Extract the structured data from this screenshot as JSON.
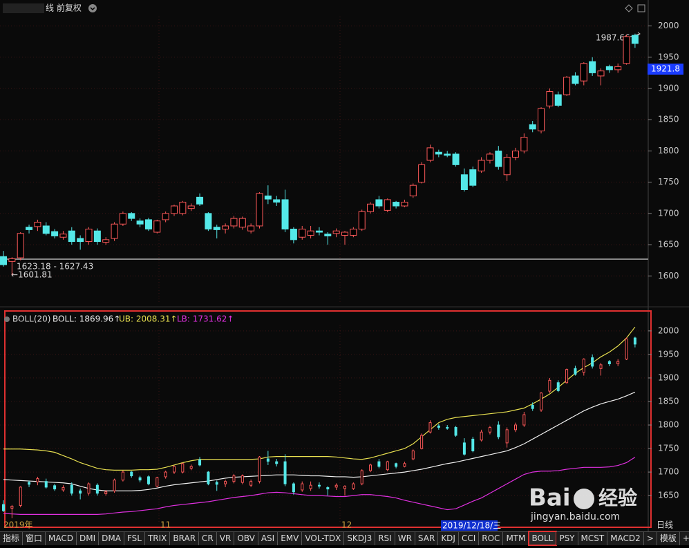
{
  "window": {
    "title": "线 前复权"
  },
  "chart_data": [
    {
      "type": "candlestick",
      "open": [
        1631,
        1623.18,
        1629,
        1678,
        1679,
        1680,
        1671,
        1662,
        1672,
        1660,
        1655,
        1672,
        1654,
        1660,
        1683,
        1700,
        1688,
        1690,
        1670,
        1690,
        1700,
        1700,
        1708,
        1726,
        1700,
        1678,
        1675,
        1680,
        1678,
        1672,
        1680,
        1728,
        1722,
        1722,
        1675,
        1662,
        1665,
        1672,
        1667,
        1668,
        1665,
        1665,
        1675,
        1703,
        1722,
        1705,
        1718,
        1712,
        1728,
        1750,
        1785,
        1798,
        1795,
        1795,
        1762,
        1770,
        1768,
        1785,
        1800,
        1762,
        1790,
        1800,
        1842,
        1832,
        1872,
        1890,
        1890,
        1920,
        1912,
        1943,
        1920,
        1935,
        1930,
        1940,
        1985
      ],
      "high": [
        1640,
        1630,
        1670,
        1682,
        1690,
        1686,
        1675,
        1672,
        1678,
        1665,
        1678,
        1676,
        1662,
        1686,
        1703,
        1702,
        1692,
        1693,
        1690,
        1703,
        1714,
        1720,
        1716,
        1732,
        1702,
        1682,
        1684,
        1696,
        1695,
        1684,
        1734,
        1745,
        1728,
        1738,
        1678,
        1680,
        1680,
        1678,
        1670,
        1676,
        1672,
        1678,
        1706,
        1718,
        1728,
        1724,
        1720,
        1722,
        1748,
        1782,
        1810,
        1802,
        1800,
        1798,
        1772,
        1775,
        1790,
        1798,
        1808,
        1795,
        1805,
        1828,
        1848,
        1870,
        1900,
        1895,
        1920,
        1926,
        1942,
        1950,
        1932,
        1938,
        1940,
        1986,
        1987.66
      ],
      "low": [
        1615,
        1601.81,
        1625,
        1668,
        1672,
        1665,
        1660,
        1658,
        1650,
        1642,
        1650,
        1650,
        1650,
        1656,
        1680,
        1688,
        1678,
        1672,
        1668,
        1686,
        1696,
        1697,
        1704,
        1712,
        1672,
        1660,
        1668,
        1676,
        1674,
        1668,
        1676,
        1715,
        1712,
        1670,
        1652,
        1658,
        1660,
        1665,
        1650,
        1662,
        1650,
        1662,
        1672,
        1700,
        1708,
        1702,
        1708,
        1710,
        1725,
        1748,
        1782,
        1790,
        1790,
        1775,
        1735,
        1742,
        1765,
        1780,
        1770,
        1752,
        1785,
        1796,
        1830,
        1828,
        1868,
        1870,
        1888,
        1905,
        1905,
        1920,
        1905,
        1925,
        1925,
        1938,
        1965
      ],
      "close": [
        1618,
        1627.43,
        1668,
        1674,
        1686,
        1668,
        1664,
        1667,
        1655,
        1655,
        1675,
        1655,
        1658,
        1683,
        1700,
        1692,
        1683,
        1675,
        1688,
        1700,
        1712,
        1718,
        1712,
        1715,
        1675,
        1674,
        1680,
        1692,
        1692,
        1680,
        1732,
        1723,
        1718,
        1675,
        1658,
        1675,
        1672,
        1670,
        1664,
        1672,
        1670,
        1675,
        1703,
        1715,
        1712,
        1722,
        1712,
        1718,
        1745,
        1778,
        1805,
        1795,
        1793,
        1778,
        1738,
        1745,
        1785,
        1795,
        1775,
        1790,
        1800,
        1822,
        1835,
        1868,
        1895,
        1873,
        1918,
        1908,
        1940,
        1925,
        1928,
        1930,
        1935,
        1983,
        1972
      ],
      "up_color": "#ff5a5a",
      "down_color": "#54e8e8",
      "ylim": [
        1555,
        2015
      ],
      "yticks": [
        1600,
        1650,
        1700,
        1750,
        1800,
        1850,
        1900,
        1950,
        2000
      ],
      "annotations": {
        "high_label": "1987.66",
        "price_label": "1921.8",
        "range_label": "1623.18 - 1627.43",
        "low_label": "←1601.81"
      },
      "grid": true
    },
    {
      "type": "boll",
      "title": "BOLL(20)",
      "series": [
        {
          "name": "BOLL: 1869.96↑",
          "color": "#f0f0f0",
          "values": [
            1684,
            1683,
            1682,
            1681,
            1680,
            1679,
            1678,
            1677,
            1675,
            1670,
            1665,
            1662,
            1660,
            1660,
            1660,
            1660,
            1661,
            1663,
            1666,
            1670,
            1673,
            1675,
            1677,
            1679,
            1681,
            1684,
            1687,
            1689,
            1690,
            1691,
            1692,
            1693,
            1694,
            1694,
            1694,
            1693,
            1692,
            1692,
            1691,
            1690,
            1690,
            1689,
            1690,
            1692,
            1694,
            1696,
            1698,
            1700,
            1703,
            1706,
            1710,
            1714,
            1718,
            1721,
            1725,
            1729,
            1733,
            1737,
            1741,
            1745,
            1752,
            1760,
            1770,
            1780,
            1790,
            1800,
            1810,
            1820,
            1830,
            1838,
            1845,
            1850,
            1855,
            1862,
            1869.96
          ]
        },
        {
          "name": "UB: 2008.31↑",
          "color": "#e8e050",
          "values": [
            1749,
            1749,
            1749,
            1748,
            1747,
            1745,
            1742,
            1735,
            1728,
            1720,
            1714,
            1708,
            1705,
            1704,
            1704,
            1704,
            1705,
            1705,
            1706,
            1710,
            1715,
            1720,
            1724,
            1727,
            1727,
            1727,
            1727,
            1727,
            1727,
            1727,
            1728,
            1732,
            1733,
            1733,
            1733,
            1733,
            1733,
            1733,
            1733,
            1732,
            1730,
            1728,
            1727,
            1730,
            1735,
            1740,
            1745,
            1750,
            1760,
            1775,
            1790,
            1805,
            1812,
            1816,
            1818,
            1820,
            1822,
            1824,
            1826,
            1828,
            1832,
            1836,
            1845,
            1855,
            1866,
            1880,
            1895,
            1910,
            1922,
            1932,
            1945,
            1955,
            1968,
            1985,
            2008.31
          ]
        },
        {
          "name": "LB: 1731.62↑",
          "color": "#e030e0",
          "values": [
            1612,
            1611,
            1610,
            1610,
            1610,
            1610,
            1610,
            1610,
            1610,
            1610,
            1610,
            1610,
            1611,
            1613,
            1615,
            1616,
            1618,
            1620,
            1622,
            1626,
            1629,
            1631,
            1633,
            1635,
            1637,
            1640,
            1643,
            1646,
            1648,
            1650,
            1653,
            1656,
            1657,
            1656,
            1654,
            1652,
            1650,
            1650,
            1649,
            1648,
            1648,
            1650,
            1652,
            1652,
            1650,
            1648,
            1645,
            1640,
            1636,
            1632,
            1628,
            1624,
            1620,
            1622,
            1630,
            1638,
            1645,
            1655,
            1665,
            1675,
            1685,
            1695,
            1700,
            1702,
            1702,
            1703,
            1706,
            1708,
            1710,
            1710,
            1710,
            1711,
            1714,
            1720,
            1731.62
          ]
        }
      ],
      "ylim": [
        1590,
        2013
      ],
      "yticks": [
        1650,
        1700,
        1750,
        1800,
        1850,
        1900,
        1950,
        2000
      ],
      "x_labels": [
        "2019年",
        "11",
        "12"
      ],
      "cursor_date": "2019/12/18/三",
      "period": "日线",
      "grid": true
    }
  ],
  "toolbar": {
    "tabs": [
      "指标",
      "窗口",
      "MACD",
      "DMI",
      "DMA",
      "FSL",
      "TRIX",
      "BRAR",
      "CR",
      "VR",
      "OBV",
      "ASI",
      "EMV",
      "VOL-TDX",
      "SKDJ3",
      "RSI",
      "WR",
      "SAR",
      "KDJ",
      "CCI",
      "ROC",
      "MTM",
      "BOLL",
      "PSY",
      "MCST",
      "MACD2",
      ">",
      "模板",
      "+",
      "-"
    ],
    "active": "BOLL"
  },
  "watermark": {
    "brand": "Bai",
    "product": "经验",
    "url": "jingyan.baidu.com"
  }
}
